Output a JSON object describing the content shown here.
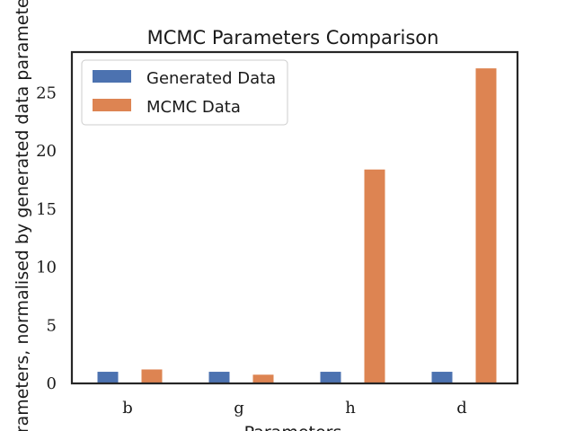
{
  "chart_data": {
    "type": "bar",
    "title": "MCMC Parameters Comparison",
    "xlabel": "Parameters",
    "ylabel": "Parameters, normalised by generated data parameters",
    "categories": [
      "b",
      "g",
      "h",
      "d"
    ],
    "series": [
      {
        "name": "Generated Data",
        "color": "#4c72b0",
        "values": [
          1.0,
          1.0,
          1.0,
          1.0
        ]
      },
      {
        "name": "MCMC Data",
        "color": "#dd8452",
        "values": [
          1.2,
          0.75,
          18.4,
          27.1
        ]
      }
    ],
    "ylim": [
      0,
      28.5
    ],
    "yticks": [
      "0",
      "5",
      "10",
      "15",
      "20",
      "25"
    ],
    "grid": false,
    "legend_position": "upper-left"
  }
}
